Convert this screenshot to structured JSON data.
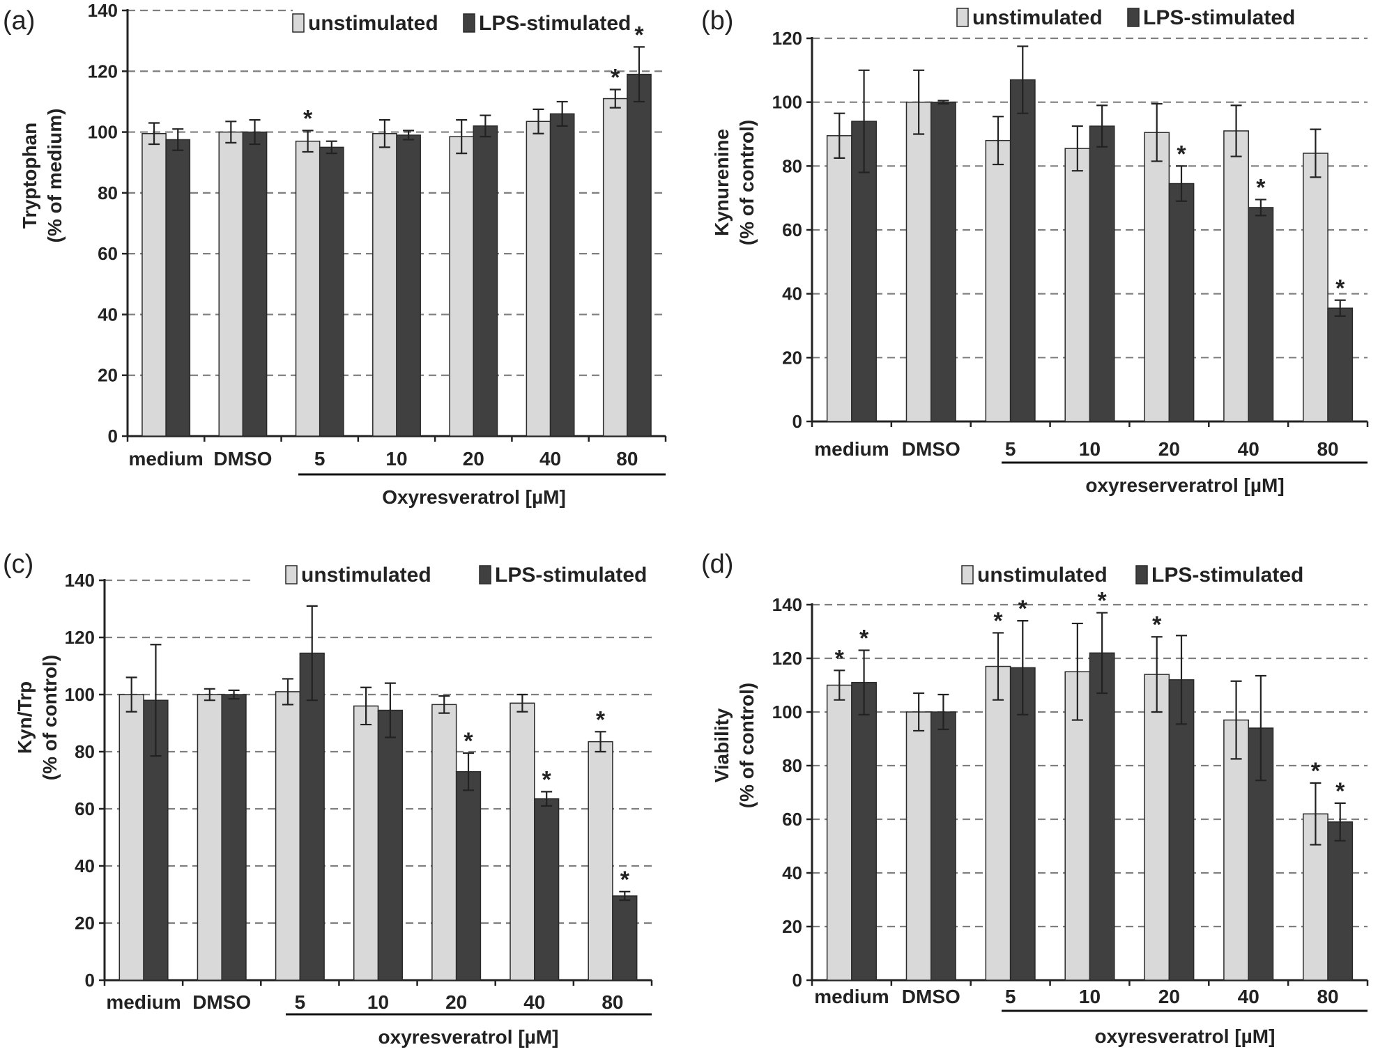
{
  "figure": {
    "colors": {
      "unstimulated": "#d9d9d9",
      "lps": "#404040",
      "bar_stroke": "#2a2a2a"
    }
  },
  "chart_data": [
    {
      "panel": "(a)",
      "type": "bar",
      "categories": [
        "medium",
        "DMSO",
        "5",
        "10",
        "20",
        "40",
        "80"
      ],
      "ylabel_line1": "Tryptophan",
      "ylabel_line2": "(% of medium)",
      "xlabel": "Oxyresveratrol [µM]",
      "ylim": [
        0,
        140
      ],
      "yticks": [
        0,
        20,
        40,
        60,
        80,
        100,
        120,
        140
      ],
      "grid": true,
      "legend_position": "top-right",
      "series": [
        {
          "name": "unstimulated",
          "values": [
            99.5,
            100,
            97,
            99.5,
            98.5,
            103.5,
            111
          ],
          "errors": [
            3.5,
            3.5,
            3.5,
            4.5,
            5.5,
            4,
            3
          ],
          "stars": [
            false,
            false,
            true,
            false,
            false,
            false,
            true
          ]
        },
        {
          "name": "LPS-stimulated",
          "values": [
            97.5,
            100,
            95,
            99,
            102,
            106,
            119
          ],
          "errors": [
            3.5,
            4,
            2,
            1.5,
            3.5,
            4,
            9
          ],
          "stars": [
            false,
            false,
            false,
            false,
            false,
            false,
            true
          ]
        }
      ],
      "star_symbol": "*"
    },
    {
      "panel": "(b)",
      "type": "bar",
      "categories": [
        "medium",
        "DMSO",
        "5",
        "10",
        "20",
        "40",
        "80"
      ],
      "ylabel_line1": "Kynurenine",
      "ylabel_line2": "(% of control)",
      "xlabel": "oxyreserveratrol [µM]",
      "ylim": [
        0,
        120
      ],
      "yticks": [
        0,
        20,
        40,
        60,
        80,
        100,
        120
      ],
      "grid": true,
      "legend_position": "top",
      "series": [
        {
          "name": "unstimulated",
          "values": [
            89.5,
            100,
            88,
            85.5,
            90.5,
            91,
            84
          ],
          "errors": [
            7,
            10,
            7.5,
            7,
            9,
            8,
            7.5
          ],
          "stars": [
            false,
            false,
            false,
            false,
            false,
            false,
            false
          ]
        },
        {
          "name": "LPS-stimulated",
          "values": [
            94,
            100,
            107,
            92.5,
            74.5,
            67,
            35.5
          ],
          "errors": [
            16,
            0.5,
            10.5,
            6.5,
            5.5,
            2.5,
            2.5
          ],
          "stars": [
            false,
            false,
            false,
            false,
            true,
            true,
            true
          ]
        }
      ],
      "star_symbol": "*"
    },
    {
      "panel": "(c)",
      "type": "bar",
      "categories": [
        "medium",
        "DMSO",
        "5",
        "10",
        "20",
        "40",
        "80"
      ],
      "ylabel_line1": "Kyn/Trp",
      "ylabel_line2": "(% of control)",
      "xlabel": "oxyresveratrol [µM]",
      "ylim": [
        0,
        140
      ],
      "yticks": [
        0,
        20,
        40,
        60,
        80,
        100,
        120,
        140
      ],
      "grid": true,
      "legend_position": "top-right",
      "series": [
        {
          "name": "unstimulated",
          "values": [
            100,
            100,
            101,
            96,
            96.5,
            97,
            83.5
          ],
          "errors": [
            6,
            2,
            4.5,
            6.5,
            3,
            3,
            3.5
          ],
          "stars": [
            false,
            false,
            false,
            false,
            false,
            false,
            true
          ]
        },
        {
          "name": "LPS-stimulated",
          "values": [
            98,
            100,
            114.5,
            94.5,
            73,
            63.5,
            29.5
          ],
          "errors": [
            19.5,
            1.5,
            16.5,
            9.5,
            6.5,
            2.5,
            1.5
          ],
          "stars": [
            false,
            false,
            false,
            false,
            true,
            true,
            true
          ]
        }
      ],
      "star_symbol": "*"
    },
    {
      "panel": "(d)",
      "type": "bar",
      "categories": [
        "medium",
        "DMSO",
        "5",
        "10",
        "20",
        "40",
        "80"
      ],
      "ylabel_line1": "Viability",
      "ylabel_line2": "(% of control)",
      "xlabel": "oxyresveratrol [µM]",
      "ylim": [
        0,
        140
      ],
      "yticks": [
        0,
        20,
        40,
        60,
        80,
        100,
        120,
        140
      ],
      "grid": true,
      "legend_position": "top-right",
      "series": [
        {
          "name": "unstimulated",
          "values": [
            110,
            100,
            117,
            115,
            114,
            97,
            62
          ],
          "errors": [
            5.5,
            7,
            12.5,
            18,
            14,
            14.5,
            11.5
          ],
          "stars": [
            true,
            false,
            true,
            false,
            true,
            false,
            true
          ]
        },
        {
          "name": "LPS-stimulated",
          "values": [
            111,
            100,
            116.5,
            122,
            112,
            94,
            59
          ],
          "errors": [
            12,
            6.5,
            17.5,
            15,
            16.5,
            19.5,
            7
          ],
          "stars": [
            true,
            false,
            true,
            true,
            false,
            false,
            true
          ]
        }
      ],
      "star_symbol": "*"
    }
  ]
}
